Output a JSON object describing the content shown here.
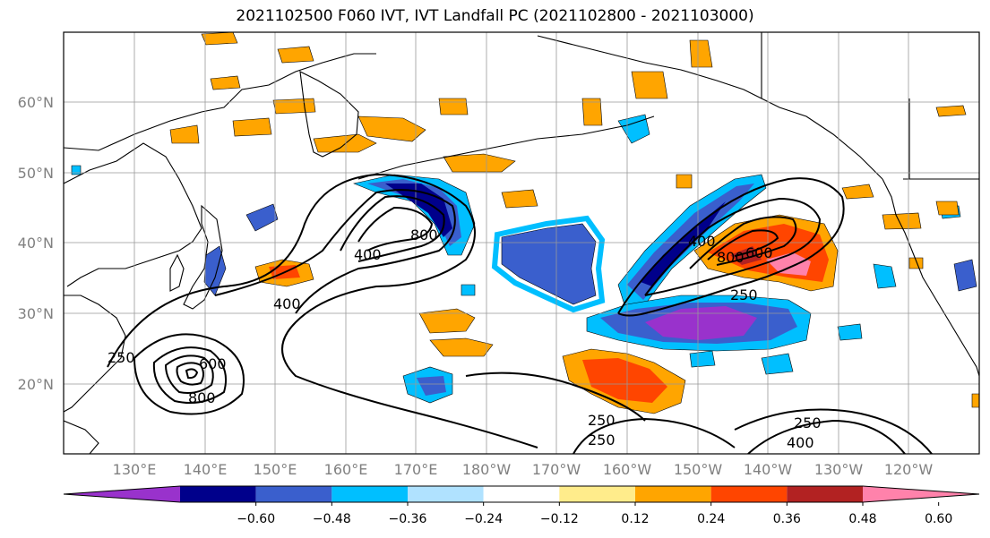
{
  "title": "2021102500 F060 IVT, IVT Landfall PC (2021102800 - 2021103000)",
  "lon_ticks": [
    "130°E",
    "140°E",
    "150°E",
    "160°E",
    "170°E",
    "180°W",
    "170°W",
    "160°W",
    "150°W",
    "140°W",
    "130°W",
    "120°W"
  ],
  "lat_ticks": [
    "60°N",
    "50°N",
    "40°N",
    "30°N",
    "20°N"
  ],
  "colorbar": {
    "ticks": [
      "−0.60",
      "−0.48",
      "−0.36",
      "−0.24",
      "−0.12",
      "0.12",
      "0.24",
      "0.36",
      "0.48",
      "0.60"
    ],
    "colors": [
      "#9932cc",
      "#00008b",
      "#3a5fcd",
      "#00bfff",
      "#b0e2ff",
      "#ffffff",
      "#ffec8b",
      "#ffa500",
      "#ff4500",
      "#b22222",
      "#ff82ab"
    ]
  },
  "contour_labels": [
    "250",
    "400",
    "600",
    "800"
  ]
}
